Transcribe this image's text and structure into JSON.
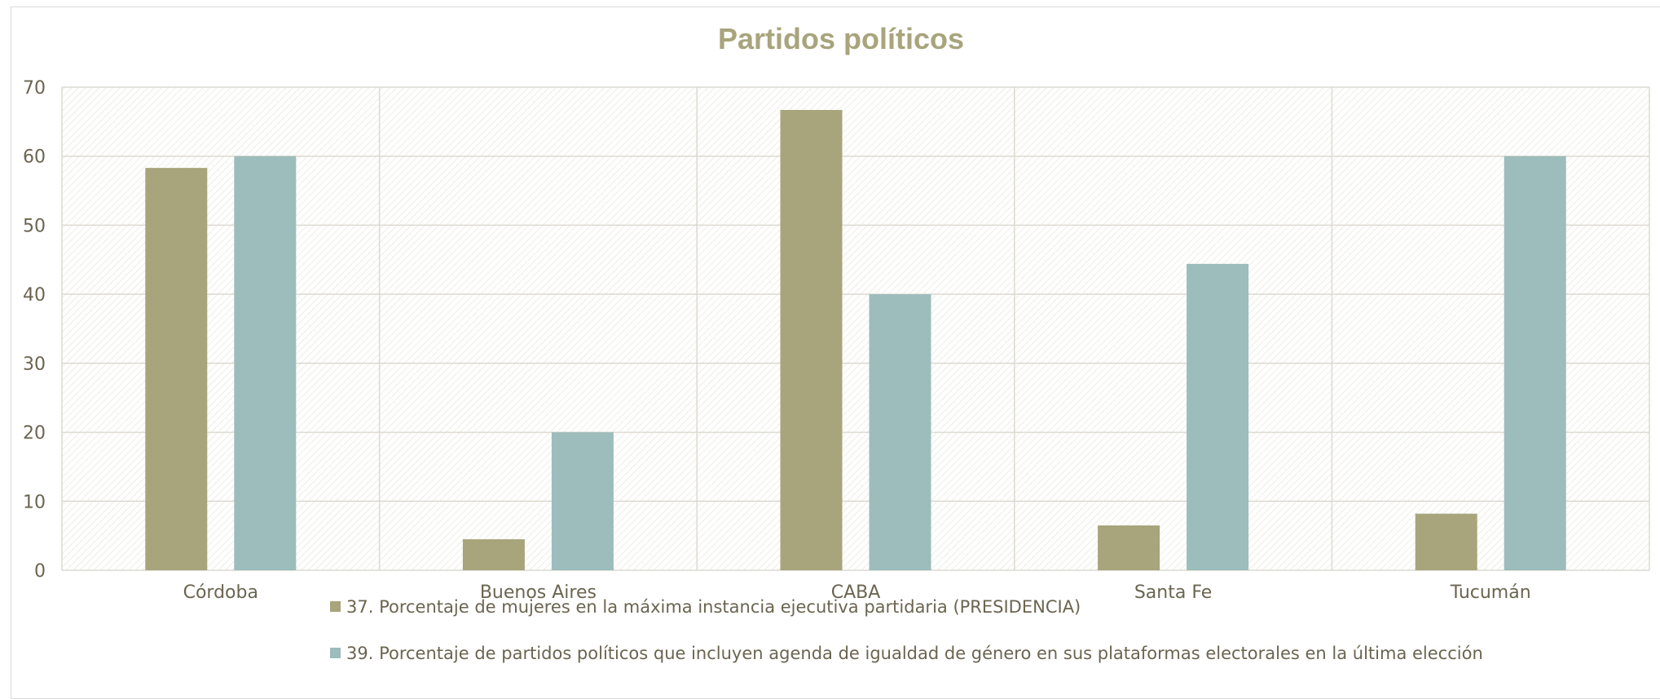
{
  "chart_data": {
    "type": "bar",
    "title": "Partidos políticos",
    "xlabel": "",
    "ylabel": "",
    "categories": [
      "Córdoba",
      "Buenos Aires",
      "CABA",
      "Santa Fe",
      "Tucumán"
    ],
    "series": [
      {
        "name": "37. Porcentaje de mujeres en la máxima instancia ejecutiva partidaria (PRESIDENCIA)",
        "color": "#a8a47c",
        "values": [
          58.3,
          4.5,
          66.7,
          6.5,
          8.2
        ]
      },
      {
        "name": "39. Porcentaje de partidos políticos que incluyen agenda de igualdad de género en sus plataformas electorales en la última elección",
        "color": "#9dbcbc",
        "values": [
          60,
          20,
          40,
          44.4,
          60
        ]
      }
    ],
    "ylim": [
      0,
      70
    ],
    "yticks": [
      0,
      10,
      20,
      30,
      40,
      50,
      60,
      70
    ],
    "grid": true,
    "legend_position": "bottom",
    "plot_background": "diagonal hatch"
  }
}
